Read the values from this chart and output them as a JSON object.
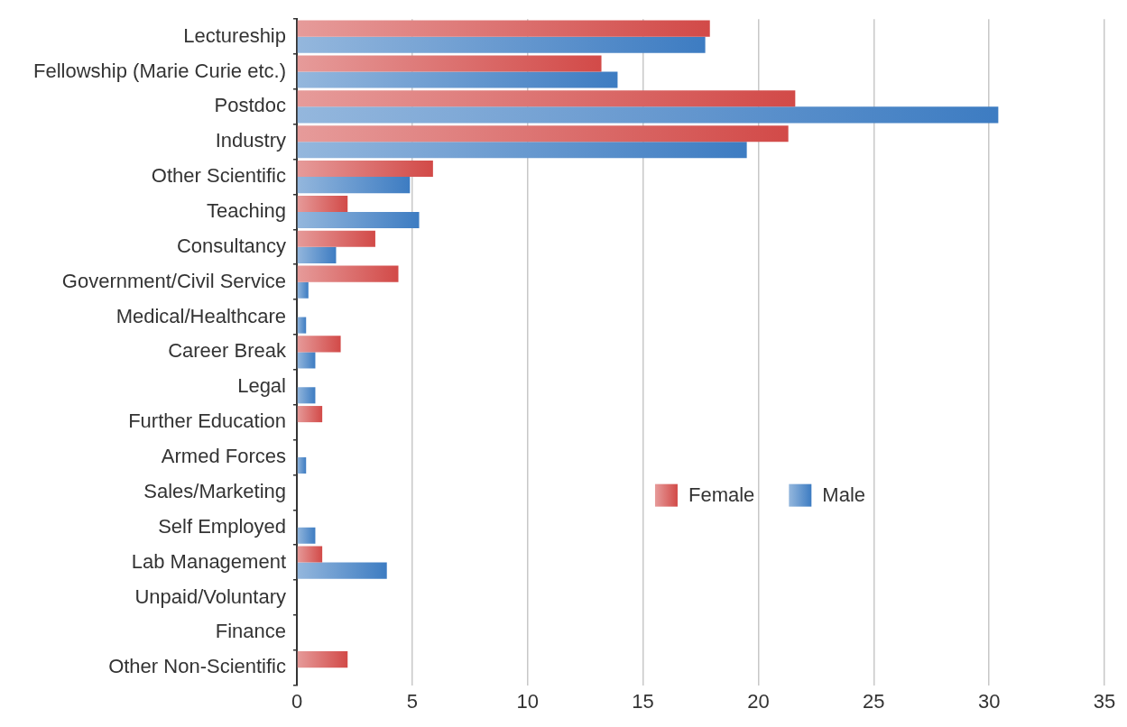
{
  "chart_data": {
    "type": "bar",
    "orientation": "horizontal",
    "categories": [
      "Lectureship",
      "Fellowship (Marie Curie etc.)",
      "Postdoc",
      "Industry",
      "Other Scientific",
      "Teaching",
      "Consultancy",
      "Government/Civil Service",
      "Medical/Healthcare",
      "Career Break",
      "Legal",
      "Further Education",
      "Armed Forces",
      "Sales/Marketing",
      "Self Employed",
      "Lab Management",
      "Unpaid/Voluntary",
      "Finance",
      "Other Non-Scientific"
    ],
    "series": [
      {
        "name": "Female",
        "color": "#d24a48",
        "values": [
          17.9,
          13.2,
          21.6,
          21.3,
          5.9,
          2.2,
          3.4,
          4.4,
          0,
          1.9,
          0,
          1.1,
          0,
          0,
          0,
          1.1,
          0,
          0,
          2.2
        ]
      },
      {
        "name": "Male",
        "color": "#3d7cc2",
        "values": [
          17.7,
          13.9,
          30.4,
          19.5,
          4.9,
          5.3,
          1.7,
          0.5,
          0.4,
          0.8,
          0.8,
          0,
          0.4,
          0,
          0.8,
          3.9,
          0,
          0,
          0
        ]
      }
    ],
    "xlim": [
      0,
      35
    ],
    "xticks": [
      0,
      5,
      10,
      15,
      20,
      25,
      30,
      35
    ],
    "grid": "x",
    "legend": "right"
  }
}
